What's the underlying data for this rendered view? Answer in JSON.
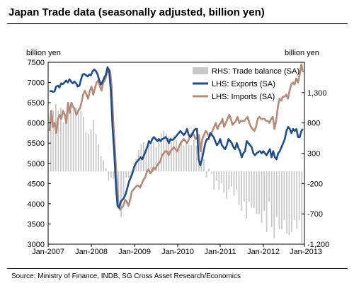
{
  "title": "Japan Trade data (seasonally adjusted, billion yen)",
  "source": "Source: Ministry of Finance, INDB, SG Cross Asset Research/Economics",
  "chart_data": {
    "type": "line",
    "left_axis_label": "billion yen",
    "right_axis_label": "billion yen",
    "x_ticks": [
      "Jan-2007",
      "Jan-2008",
      "Jan-2009",
      "Jan-2010",
      "Jan-2011",
      "Jan-2012",
      "Jan-2013"
    ],
    "left_ylim": [
      3000,
      7500
    ],
    "left_ticks": [
      "7500",
      "7000",
      "6500",
      "6000",
      "5500",
      "5000",
      "4500",
      "4000",
      "3500",
      "3000"
    ],
    "right_ylim": [
      -1200,
      1800
    ],
    "right_ticks": [
      "1,300",
      "800",
      "300",
      "-200",
      "-700",
      "-1,200"
    ],
    "legend_position": "top-right",
    "colors": {
      "exports": "#1f4e8c",
      "imports": "#b88a78",
      "trade_balance": "#c8c8c8"
    },
    "series": [
      {
        "name": "RHS: Trade balance (SA)",
        "type": "bar",
        "axis": "right",
        "values": [
          820,
          1000,
          1110,
          1000,
          1050,
          810,
          960,
          1050,
          1000,
          1080,
          1050,
          1040,
          1000,
          900,
          650,
          620,
          700,
          850,
          620,
          450,
          250,
          180,
          50,
          -150,
          -100,
          -120,
          -380,
          -600,
          -750,
          -420,
          -100,
          -100,
          -50,
          80,
          200,
          350,
          450,
          480,
          420,
          450,
          500,
          480,
          400,
          550,
          630,
          670,
          630,
          580,
          480,
          600,
          520,
          440,
          480,
          430,
          490,
          440,
          430,
          520,
          420,
          450,
          380,
          200,
          -100,
          50,
          -40,
          -300,
          -150,
          -300,
          -200,
          -350,
          -450,
          -300,
          -250,
          -400,
          -300,
          -550,
          -650,
          -500,
          -780,
          -500,
          -600,
          -600,
          -700,
          -700,
          -850,
          -650,
          -1000,
          -500,
          -920,
          -1100,
          -750,
          -950,
          -950,
          -800,
          -1020,
          -1050,
          -1000,
          -800,
          -950,
          -800,
          -1180
        ]
      },
      {
        "name": "LHS: Exports (SA)",
        "type": "line",
        "axis": "left",
        "values": [
          6780,
          6790,
          6770,
          6780,
          6900,
          6920,
          6880,
          6980,
          6960,
          7000,
          7050,
          7000,
          7080,
          7020,
          6980,
          7020,
          6980,
          6900,
          6920,
          7080,
          7200,
          7210,
          7180,
          7150,
          7200,
          7180,
          7280,
          7320,
          7280,
          7200,
          7050,
          6950,
          7020,
          7120,
          7200,
          7380,
          7260,
          6800,
          5900,
          5300,
          4500,
          3950,
          3900,
          4050,
          4100,
          4150,
          4250,
          4400,
          4550,
          4650,
          4750,
          4900,
          5000,
          5050,
          5100,
          5150,
          5100,
          5200,
          5300,
          5400,
          5550,
          5500,
          5600,
          5650,
          5600,
          5550,
          5600,
          5550,
          5600,
          5620,
          5650,
          5600,
          5500,
          5600,
          5580,
          5600,
          5650,
          5700,
          5750,
          5800,
          5750,
          5700,
          5750,
          5850,
          5700,
          5650,
          5700,
          5800,
          5850,
          5850,
          5100,
          4950,
          5100,
          5300,
          5500,
          5600,
          5600,
          5750,
          5700,
          5650,
          5550,
          5450,
          5500,
          5600,
          5450,
          5400,
          5350,
          5450,
          5600,
          5550,
          5500,
          5400,
          5350,
          5500,
          5380,
          5300,
          5150,
          5250,
          5300,
          5550,
          5500,
          5450,
          5400,
          5250,
          5200,
          5250,
          5280,
          5300,
          5250,
          5300,
          5250,
          5200,
          5280,
          5350,
          5150,
          5300,
          5150,
          5100,
          5250,
          5300,
          5400,
          5500,
          5600,
          5800,
          5900,
          5850,
          5750,
          5850,
          5800,
          5850,
          5650,
          5650,
          5800,
          5850
        ]
      },
      {
        "name": "LHS: Imports (SA)",
        "type": "line",
        "axis": "left",
        "values": [
          5800,
          6300,
          5900,
          6000,
          5750,
          6100,
          6200,
          6100,
          6300,
          6200,
          6000,
          6500,
          6250,
          6500,
          6400,
          6350,
          6200,
          6300,
          6350,
          6500,
          6700,
          6800,
          6700,
          6600,
          6800,
          6900,
          6700,
          6850,
          7000,
          7050,
          6900,
          6800,
          7000,
          7050,
          7200,
          7350,
          7300,
          6900,
          6000,
          5300,
          4600,
          4000,
          3850,
          3900,
          3950,
          4100,
          4050,
          3950,
          4100,
          4300,
          4350,
          4400,
          4450,
          4450,
          4400,
          4500,
          4600,
          4650,
          4800,
          4850,
          4750,
          4800,
          4900,
          4850,
          4950,
          5000,
          5050,
          5200,
          5250,
          5300,
          5300,
          5200,
          5300,
          5350,
          5400,
          5350,
          5300,
          5400,
          5500,
          5550,
          5600,
          5550,
          5500,
          5600,
          5700,
          5750,
          5700,
          5600,
          5650,
          5700,
          5300,
          5600,
          5700,
          5800,
          5750,
          5650,
          5700,
          5800,
          5900,
          6000,
          5850,
          5950,
          6000,
          6100,
          5900,
          6000,
          6100,
          6200,
          6100,
          5950,
          6000,
          6050,
          6150,
          6000,
          6050,
          6050,
          6050,
          6100,
          6150,
          6000,
          5900,
          5850,
          5800,
          5900,
          6100,
          6150,
          6100,
          6100,
          6100,
          6050,
          6050,
          6000,
          6100,
          6150,
          5850,
          6050,
          6400,
          6600,
          6550,
          6650,
          6650,
          6700,
          6600,
          6800,
          6950,
          7000,
          6950,
          7100,
          7000,
          7200,
          7450,
          7250
        ]
      }
    ]
  }
}
